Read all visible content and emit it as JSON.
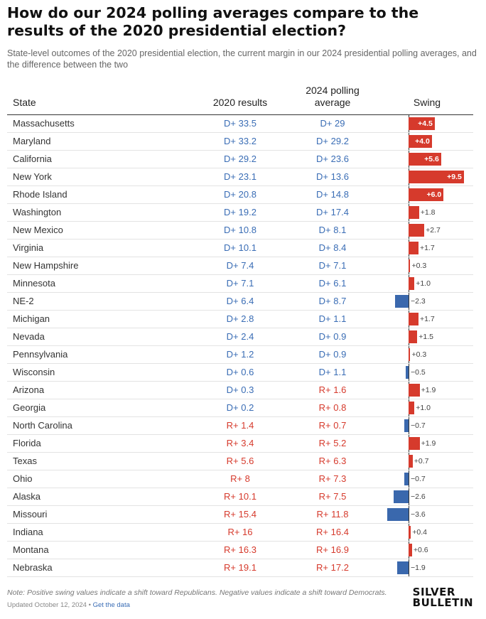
{
  "title": "How do our 2024 polling averages compare to the results of the 2020 presidential election?",
  "subtitle": "State-level outcomes of the 2020 presidential election, the current margin in our 2024 presidential polling averages, and the difference between the two",
  "columns": {
    "state": "State",
    "results2020": "2020 results",
    "polling2024": "2024 polling average",
    "swing": "Swing"
  },
  "chart_data": {
    "type": "table",
    "swing_range": [
      -4,
      10
    ],
    "colors": {
      "democrat": "#3a68ad",
      "republican": "#d63a2c"
    },
    "rows": [
      {
        "state": "Massachusetts",
        "r2020": "D+ 33.5",
        "avg2024": "D+ 29",
        "swing": 4.5,
        "swing_label": "+4.5"
      },
      {
        "state": "Maryland",
        "r2020": "D+ 33.2",
        "avg2024": "D+ 29.2",
        "swing": 4.0,
        "swing_label": "+4.0"
      },
      {
        "state": "California",
        "r2020": "D+ 29.2",
        "avg2024": "D+ 23.6",
        "swing": 5.6,
        "swing_label": "+5.6"
      },
      {
        "state": "New York",
        "r2020": "D+ 23.1",
        "avg2024": "D+ 13.6",
        "swing": 9.5,
        "swing_label": "+9.5"
      },
      {
        "state": "Rhode Island",
        "r2020": "D+ 20.8",
        "avg2024": "D+ 14.8",
        "swing": 6.0,
        "swing_label": "+6.0"
      },
      {
        "state": "Washington",
        "r2020": "D+ 19.2",
        "avg2024": "D+ 17.4",
        "swing": 1.8,
        "swing_label": "+1.8"
      },
      {
        "state": "New Mexico",
        "r2020": "D+ 10.8",
        "avg2024": "D+ 8.1",
        "swing": 2.7,
        "swing_label": "+2.7"
      },
      {
        "state": "Virginia",
        "r2020": "D+ 10.1",
        "avg2024": "D+ 8.4",
        "swing": 1.7,
        "swing_label": "+1.7"
      },
      {
        "state": "New Hampshire",
        "r2020": "D+ 7.4",
        "avg2024": "D+ 7.1",
        "swing": 0.3,
        "swing_label": "+0.3"
      },
      {
        "state": "Minnesota",
        "r2020": "D+ 7.1",
        "avg2024": "D+ 6.1",
        "swing": 1.0,
        "swing_label": "+1.0"
      },
      {
        "state": "NE-2",
        "r2020": "D+ 6.4",
        "avg2024": "D+ 8.7",
        "swing": -2.3,
        "swing_label": "−2.3"
      },
      {
        "state": "Michigan",
        "r2020": "D+ 2.8",
        "avg2024": "D+ 1.1",
        "swing": 1.7,
        "swing_label": "+1.7"
      },
      {
        "state": "Nevada",
        "r2020": "D+ 2.4",
        "avg2024": "D+ 0.9",
        "swing": 1.5,
        "swing_label": "+1.5"
      },
      {
        "state": "Pennsylvania",
        "r2020": "D+ 1.2",
        "avg2024": "D+ 0.9",
        "swing": 0.3,
        "swing_label": "+0.3"
      },
      {
        "state": "Wisconsin",
        "r2020": "D+ 0.6",
        "avg2024": "D+ 1.1",
        "swing": -0.5,
        "swing_label": "−0.5"
      },
      {
        "state": "Arizona",
        "r2020": "D+ 0.3",
        "avg2024": "R+ 1.6",
        "swing": 1.9,
        "swing_label": "+1.9"
      },
      {
        "state": "Georgia",
        "r2020": "D+ 0.2",
        "avg2024": "R+ 0.8",
        "swing": 1.0,
        "swing_label": "+1.0"
      },
      {
        "state": "North Carolina",
        "r2020": "R+ 1.4",
        "avg2024": "R+ 0.7",
        "swing": -0.7,
        "swing_label": "−0.7"
      },
      {
        "state": "Florida",
        "r2020": "R+ 3.4",
        "avg2024": "R+ 5.2",
        "swing": 1.9,
        "swing_label": "+1.9"
      },
      {
        "state": "Texas",
        "r2020": "R+ 5.6",
        "avg2024": "R+ 6.3",
        "swing": 0.7,
        "swing_label": "+0.7"
      },
      {
        "state": "Ohio",
        "r2020": "R+ 8",
        "avg2024": "R+ 7.3",
        "swing": -0.7,
        "swing_label": "−0.7"
      },
      {
        "state": "Alaska",
        "r2020": "R+ 10.1",
        "avg2024": "R+ 7.5",
        "swing": -2.6,
        "swing_label": "−2.6"
      },
      {
        "state": "Missouri",
        "r2020": "R+ 15.4",
        "avg2024": "R+ 11.8",
        "swing": -3.6,
        "swing_label": "−3.6"
      },
      {
        "state": "Indiana",
        "r2020": "R+ 16",
        "avg2024": "R+ 16.4",
        "swing": 0.4,
        "swing_label": "+0.4"
      },
      {
        "state": "Montana",
        "r2020": "R+ 16.3",
        "avg2024": "R+ 16.9",
        "swing": 0.6,
        "swing_label": "+0.6"
      },
      {
        "state": "Nebraska",
        "r2020": "R+ 19.1",
        "avg2024": "R+ 17.2",
        "swing": -1.9,
        "swing_label": "−1.9"
      }
    ]
  },
  "footer": {
    "note": "Note: Positive swing values indicate a shift toward Republicans. Negative values indicate a shift toward Democrats.",
    "updated": "Updated October 12, 2024",
    "separator": " • ",
    "link": "Get the data"
  },
  "logo": {
    "line1": "SILVER",
    "line2": "BULLETIN"
  }
}
